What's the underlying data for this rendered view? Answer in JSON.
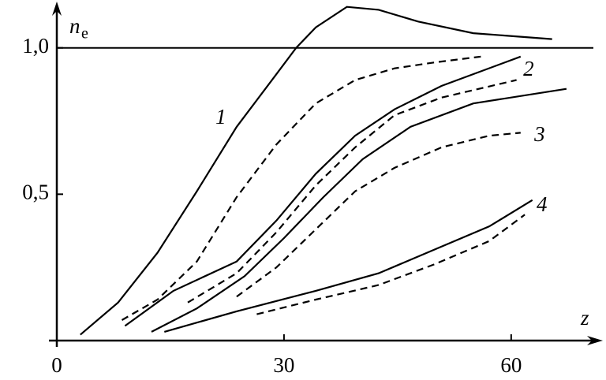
{
  "chart_data": {
    "type": "line",
    "xlabel": "z",
    "ylabel": "n",
    "ylabel_sub": "e",
    "xlim": [
      0,
      72
    ],
    "ylim": [
      0,
      1.15
    ],
    "xticks": [
      0,
      30,
      60
    ],
    "yticks": [
      {
        "value": 0.5,
        "label": "0,5"
      },
      {
        "value": 1.0,
        "label": "1,0"
      }
    ],
    "grid": false,
    "series": [
      {
        "name": "1",
        "color": "#000",
        "style": "solid",
        "x": [
          3.1,
          8.1,
          13.3,
          18.5,
          23.75,
          29,
          31.6,
          34.2,
          38.3,
          42.5,
          47.7,
          55,
          65.4
        ],
        "values": [
          0.02,
          0.13,
          0.3,
          0.51,
          0.73,
          0.91,
          1.0,
          1.07,
          1.14,
          1.13,
          1.09,
          1.05,
          1.03
        ]
      },
      {
        "color": "#000",
        "style": "dashed",
        "x": [
          8.6,
          13.3,
          18.5,
          23.75,
          29,
          34.2,
          39.4,
          44.6,
          49.8,
          56
        ],
        "values": [
          0.07,
          0.14,
          0.27,
          0.49,
          0.67,
          0.81,
          0.89,
          0.93,
          0.95,
          0.97
        ]
      },
      {
        "name": "2",
        "color": "#000",
        "style": "solid",
        "x": [
          9,
          15.4,
          23.75,
          29,
          34.2,
          39.4,
          44.6,
          50.8,
          61.25
        ],
        "values": [
          0.05,
          0.17,
          0.27,
          0.41,
          0.57,
          0.7,
          0.79,
          0.87,
          0.97
        ]
      },
      {
        "color": "#000",
        "style": "dashed",
        "x": [
          17.3,
          23.75,
          29,
          34.2,
          39.4,
          44.6,
          50.8,
          60.7
        ],
        "values": [
          0.13,
          0.23,
          0.37,
          0.53,
          0.66,
          0.77,
          0.83,
          0.89
        ]
      },
      {
        "name": "3",
        "color": "#000",
        "style": "solid",
        "x": [
          12.5,
          18.5,
          24.8,
          30,
          35.2,
          40.4,
          46.7,
          55,
          67.3
        ],
        "values": [
          0.03,
          0.11,
          0.22,
          0.35,
          0.49,
          0.62,
          0.73,
          0.81,
          0.86
        ]
      },
      {
        "color": "#000",
        "style": "dashed",
        "x": [
          23.75,
          29,
          34.2,
          39.4,
          44.6,
          50.8,
          57.1,
          61.25
        ],
        "values": [
          0.15,
          0.25,
          0.38,
          0.51,
          0.59,
          0.66,
          0.7,
          0.71
        ]
      },
      {
        "name": "4",
        "color": "#000",
        "style": "solid",
        "x": [
          14.2,
          23.75,
          34.2,
          42.5,
          49.8,
          57.1,
          62.8
        ],
        "values": [
          0.03,
          0.1,
          0.17,
          0.23,
          0.31,
          0.39,
          0.48
        ]
      },
      {
        "color": "#000",
        "style": "dashed",
        "x": [
          26.4,
          34.2,
          42.5,
          49.8,
          57.1,
          61.8
        ],
        "values": [
          0.09,
          0.14,
          0.19,
          0.26,
          0.34,
          0.43
        ]
      }
    ]
  }
}
